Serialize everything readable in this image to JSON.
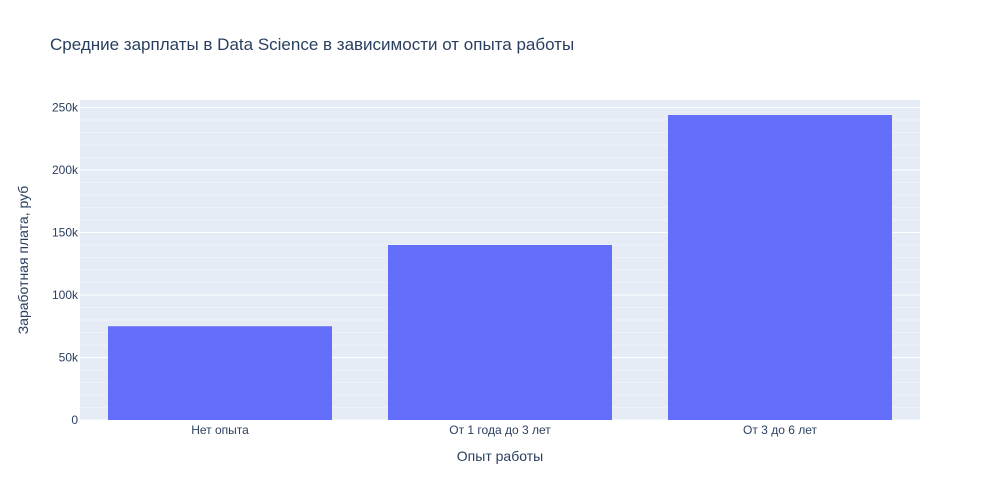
{
  "chart_data": {
    "type": "bar",
    "title": "Средние зарплаты в Data Science в зависимости от опыта работы",
    "xlabel": "Опыт работы",
    "ylabel": "Заработная плата, руб",
    "categories": [
      "Нет опыта",
      "От 1 года до 3 лет",
      "От 3 до 6 лет"
    ],
    "values": [
      75000,
      140000,
      244000
    ],
    "ylim": [
      0,
      256000
    ],
    "yticks": [
      0,
      50000,
      100000,
      150000,
      200000,
      250000
    ],
    "ytick_labels": [
      "0",
      "50k",
      "100k",
      "150k",
      "200k",
      "250k"
    ],
    "grid": true,
    "minor_grid": true,
    "colors": {
      "bar": "#636efa",
      "plot_bg": "#e5ecf6",
      "grid": "#ffffff",
      "text": "#2a3f5f"
    }
  }
}
